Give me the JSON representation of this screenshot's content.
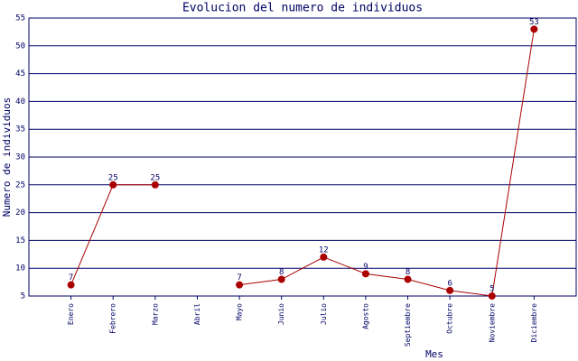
{
  "chart_data": {
    "type": "line",
    "title": "Evolucion del numero de individuos",
    "x_label": "Mes",
    "y_label": "Numero de individuos",
    "categories": [
      "Enero",
      "Febrero",
      "Marzo",
      "Abril",
      "Mayo",
      "Junio",
      "Julio",
      "Agosto",
      "Septiembre",
      "Octubre",
      "Noviembre",
      "Diciembre"
    ],
    "series": [
      {
        "name": "individuos",
        "color": "#aa0000",
        "values": [
          7,
          25,
          25,
          null,
          7,
          8,
          12,
          9,
          8,
          6,
          5,
          53
        ]
      }
    ],
    "ylim": [
      5,
      55
    ],
    "yticks": [
      5,
      10,
      15,
      20,
      25,
      30,
      35,
      40,
      45,
      50,
      55
    ],
    "grid": true
  }
}
